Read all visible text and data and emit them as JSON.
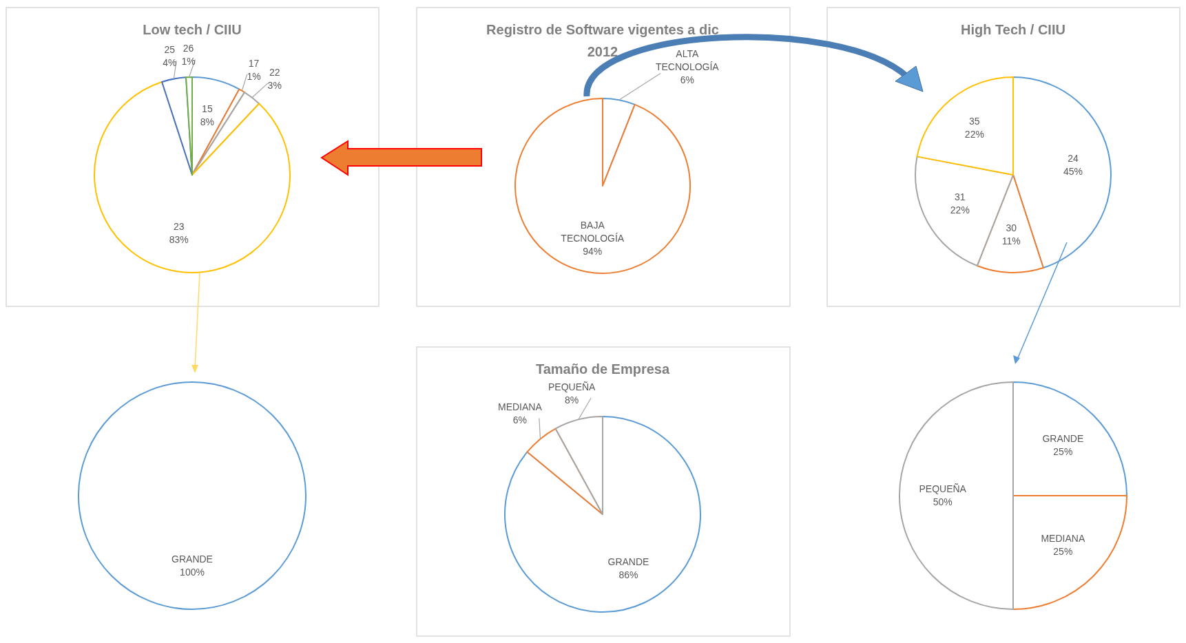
{
  "chart_data": [
    {
      "type": "pie",
      "title": "Low tech / CIIU",
      "categories": [
        "15",
        "17",
        "22",
        "23",
        "25",
        "26"
      ],
      "values": [
        8,
        1,
        3,
        83,
        4,
        1
      ],
      "value_labels": [
        "8%",
        "1%",
        "3%",
        "83%",
        "4%",
        "1%"
      ],
      "colors": [
        "#5b9bd5",
        "#ed7d31",
        "#a5a5a5",
        "#ffc000",
        "#4472c4",
        "#70ad47"
      ]
    },
    {
      "type": "pie",
      "title": "Registro de Software vigentes a dic 2012",
      "categories": [
        "ALTA TECNOLOGÍA",
        "BAJA TECNOLOGÍA"
      ],
      "values": [
        6,
        94
      ],
      "value_labels": [
        "6%",
        "94%"
      ],
      "colors": [
        "#5b9bd5",
        "#ed7d31"
      ]
    },
    {
      "type": "pie",
      "title": "High Tech / CIIU",
      "categories": [
        "24",
        "30",
        "31",
        "35"
      ],
      "values": [
        45,
        11,
        22,
        22
      ],
      "value_labels": [
        "45%",
        "11%",
        "22%",
        "22%"
      ],
      "colors": [
        "#5b9bd5",
        "#ed7d31",
        "#a5a5a5",
        "#ffc000"
      ]
    },
    {
      "type": "pie",
      "categories": [
        "GRANDE"
      ],
      "values": [
        100
      ],
      "value_labels": [
        "100%"
      ],
      "colors": [
        "#5b9bd5"
      ]
    },
    {
      "type": "pie",
      "title": "Tamaño de Empresa",
      "categories": [
        "GRANDE",
        "MEDIANA",
        "PEQUEÑA"
      ],
      "values": [
        86,
        6,
        8
      ],
      "value_labels": [
        "86%",
        "6%",
        "8%"
      ],
      "colors": [
        "#5b9bd5",
        "#ed7d31",
        "#a5a5a5"
      ]
    },
    {
      "type": "pie",
      "categories": [
        "GRANDE",
        "MEDIANA",
        "PEQUEÑA"
      ],
      "values": [
        25,
        25,
        50
      ],
      "value_labels": [
        "25%",
        "25%",
        "50%"
      ],
      "colors": [
        "#5b9bd5",
        "#ed7d31",
        "#a5a5a5"
      ]
    }
  ]
}
